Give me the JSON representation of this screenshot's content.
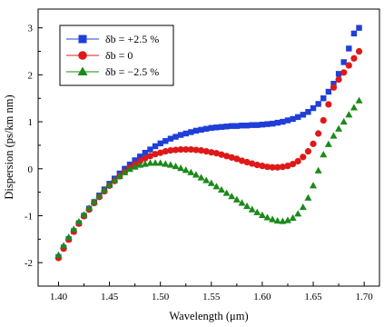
{
  "chart_data": {
    "type": "scatter",
    "title": "",
    "xlabel": "Wavelength (μm)",
    "ylabel": "Dispersion (ps/km nm)",
    "xlim": [
      1.38,
      1.715
    ],
    "ylim": [
      -2.5,
      3.4
    ],
    "xticks": [
      1.4,
      1.45,
      1.5,
      1.55,
      1.6,
      1.65,
      1.7
    ],
    "yticks": [
      -2,
      -1,
      0,
      1,
      2,
      3
    ],
    "xtick_labels": [
      "1.40",
      "1.45",
      "1.50",
      "1.55",
      "1.60",
      "1.65",
      "1.70"
    ],
    "ytick_labels": [
      "-2",
      "-1",
      "0",
      "1",
      "2",
      "3"
    ],
    "grid": false,
    "legend_position": "top-left",
    "x": [
      1.4,
      1.405,
      1.41,
      1.415,
      1.42,
      1.425,
      1.43,
      1.435,
      1.44,
      1.445,
      1.45,
      1.455,
      1.46,
      1.465,
      1.47,
      1.475,
      1.48,
      1.485,
      1.49,
      1.495,
      1.5,
      1.505,
      1.51,
      1.515,
      1.52,
      1.525,
      1.53,
      1.535,
      1.54,
      1.545,
      1.55,
      1.555,
      1.56,
      1.565,
      1.57,
      1.575,
      1.58,
      1.585,
      1.59,
      1.595,
      1.6,
      1.605,
      1.61,
      1.615,
      1.62,
      1.625,
      1.63,
      1.635,
      1.64,
      1.645,
      1.65,
      1.655,
      1.66,
      1.665,
      1.67,
      1.675,
      1.68,
      1.685,
      1.69,
      1.695
    ],
    "series": [
      {
        "name": "δb = +2.5 %",
        "color": "#1f3fd9",
        "marker": "square",
        "values": [
          -1.88,
          -1.68,
          -1.5,
          -1.33,
          -1.16,
          -1.0,
          -0.85,
          -0.71,
          -0.57,
          -0.44,
          -0.32,
          -0.21,
          -0.1,
          0.0,
          0.09,
          0.18,
          0.26,
          0.34,
          0.41,
          0.48,
          0.54,
          0.59,
          0.64,
          0.68,
          0.72,
          0.75,
          0.78,
          0.81,
          0.83,
          0.85,
          0.87,
          0.88,
          0.89,
          0.9,
          0.91,
          0.91,
          0.92,
          0.92,
          0.93,
          0.93,
          0.94,
          0.95,
          0.96,
          0.98,
          1.0,
          1.03,
          1.06,
          1.1,
          1.15,
          1.21,
          1.29,
          1.38,
          1.5,
          1.64,
          1.81,
          2.02,
          2.27,
          2.56,
          2.88,
          3.0
        ]
      },
      {
        "name": "δb = 0",
        "color": "#e01818",
        "marker": "circle",
        "values": [
          -1.9,
          -1.7,
          -1.51,
          -1.34,
          -1.17,
          -1.01,
          -0.87,
          -0.73,
          -0.6,
          -0.48,
          -0.36,
          -0.26,
          -0.16,
          -0.07,
          0.02,
          0.09,
          0.16,
          0.22,
          0.27,
          0.31,
          0.34,
          0.37,
          0.39,
          0.4,
          0.41,
          0.41,
          0.41,
          0.4,
          0.39,
          0.37,
          0.35,
          0.33,
          0.3,
          0.27,
          0.24,
          0.21,
          0.17,
          0.14,
          0.11,
          0.08,
          0.06,
          0.04,
          0.03,
          0.03,
          0.04,
          0.06,
          0.1,
          0.16,
          0.25,
          0.37,
          0.53,
          0.75,
          1.03,
          1.37,
          1.73,
          1.9,
          2.05,
          2.2,
          2.35,
          2.5
        ]
      },
      {
        "name": "δb = −2.5 %",
        "color": "#1a8a1a",
        "marker": "triangle",
        "values": [
          -1.84,
          -1.64,
          -1.46,
          -1.29,
          -1.13,
          -0.98,
          -0.84,
          -0.71,
          -0.58,
          -0.46,
          -0.35,
          -0.25,
          -0.16,
          -0.08,
          -0.01,
          0.04,
          0.08,
          0.1,
          0.12,
          0.12,
          0.12,
          0.1,
          0.08,
          0.05,
          0.01,
          -0.03,
          -0.08,
          -0.13,
          -0.19,
          -0.25,
          -0.31,
          -0.38,
          -0.45,
          -0.52,
          -0.59,
          -0.66,
          -0.73,
          -0.8,
          -0.87,
          -0.93,
          -0.99,
          -1.04,
          -1.08,
          -1.11,
          -1.12,
          -1.1,
          -1.05,
          -0.96,
          -0.82,
          -0.62,
          -0.36,
          -0.04,
          0.3,
          0.52,
          0.7,
          0.85,
          1.0,
          1.15,
          1.3,
          1.45
        ]
      }
    ],
    "series_counts": [
      60,
      60,
      60
    ],
    "series_x_offset": [
      0,
      0,
      0
    ]
  }
}
